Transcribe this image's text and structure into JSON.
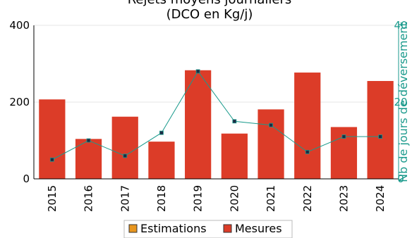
{
  "chart_data": {
    "type": "bar",
    "title_line1": "Rejets moyens journaliers",
    "title_line2": "(DCO en Kg/j)",
    "categories": [
      "2015",
      "2016",
      "2017",
      "2018",
      "2019",
      "2020",
      "2021",
      "2022",
      "2023",
      "2024"
    ],
    "series": [
      {
        "name": "Estimations",
        "color": "#e8961e",
        "values": [
          null,
          null,
          null,
          null,
          null,
          null,
          null,
          null,
          null,
          null
        ]
      },
      {
        "name": "Mesures",
        "color": "#dc3c28",
        "values": [
          207,
          104,
          162,
          97,
          283,
          118,
          181,
          277,
          135,
          255
        ]
      }
    ],
    "line_series": {
      "name": "Nb de jours de déversement",
      "color": "#1a9a8c",
      "axis": "right",
      "values": [
        5,
        10,
        6,
        12,
        28,
        15,
        14,
        7,
        11,
        11
      ]
    },
    "y_left": {
      "lim": [
        0,
        400
      ],
      "ticks": [
        "0",
        "200",
        "400"
      ]
    },
    "y_right": {
      "label": "Nb de jours de déversement",
      "lim": [
        0,
        40
      ],
      "ticks": [
        "0",
        "20",
        "40"
      ]
    },
    "grid": "horizontal",
    "legend_position": "bottom-center"
  }
}
